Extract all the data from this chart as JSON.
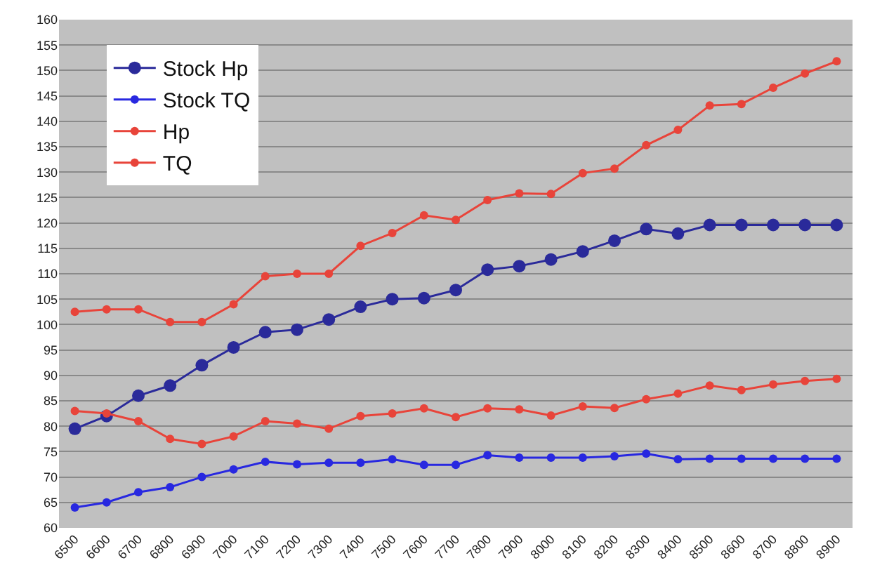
{
  "chart_data": {
    "type": "line",
    "categories": [
      "6500",
      "6600",
      "6700",
      "6800",
      "6900",
      "7000",
      "7100",
      "7200",
      "7300",
      "7400",
      "7500",
      "7600",
      "7700",
      "7800",
      "7900",
      "8000",
      "8100",
      "8200",
      "8300",
      "8400",
      "8500",
      "8600",
      "8700",
      "8800",
      "8900"
    ],
    "series": [
      {
        "name": "Stock Hp",
        "color": "#2a2a9a",
        "values": [
          79.5,
          82,
          86,
          88,
          92,
          95.5,
          98.5,
          99,
          101,
          103.5,
          105,
          105.2,
          106.8,
          110.8,
          111.5,
          112.8,
          114.4,
          116.5,
          118.8,
          117.9,
          119.6,
          119.6,
          119.6,
          119.6,
          119.6
        ]
      },
      {
        "name": "Stock TQ",
        "color": "#2828e0",
        "values": [
          64,
          65,
          67,
          68,
          70,
          71.5,
          73,
          72.5,
          72.8,
          72.8,
          73.5,
          72.4,
          72.4,
          74.3,
          73.8,
          73.8,
          73.8,
          74.1,
          74.6,
          73.5,
          73.6,
          73.6,
          73.6,
          73.6,
          73.6
        ]
      },
      {
        "name": "Hp",
        "color": "#e8443a",
        "values": [
          102.5,
          103,
          103,
          100.5,
          100.5,
          104,
          109.5,
          110,
          110,
          115.5,
          118,
          121.5,
          120.6,
          124.5,
          125.8,
          125.7,
          129.8,
          130.7,
          135.3,
          138.3,
          143.1,
          143.4,
          146.6,
          149.4,
          151.8
        ]
      },
      {
        "name": "TQ",
        "color": "#e8443a",
        "values": [
          83,
          82.5,
          81,
          77.5,
          76.5,
          78,
          81,
          80.5,
          79.5,
          82,
          82.5,
          83.5,
          81.8,
          83.5,
          83.3,
          82.1,
          83.9,
          83.6,
          85.3,
          86.4,
          88,
          87.1,
          88.2,
          88.9,
          89.3
        ]
      }
    ],
    "ylim": [
      60,
      160
    ],
    "yticks": [
      60,
      65,
      70,
      75,
      80,
      85,
      90,
      95,
      100,
      105,
      110,
      115,
      120,
      125,
      130,
      135,
      140,
      145,
      150,
      155,
      160
    ],
    "grid": "y",
    "legend": "top left",
    "marker": "circle",
    "line_style": "solid"
  }
}
